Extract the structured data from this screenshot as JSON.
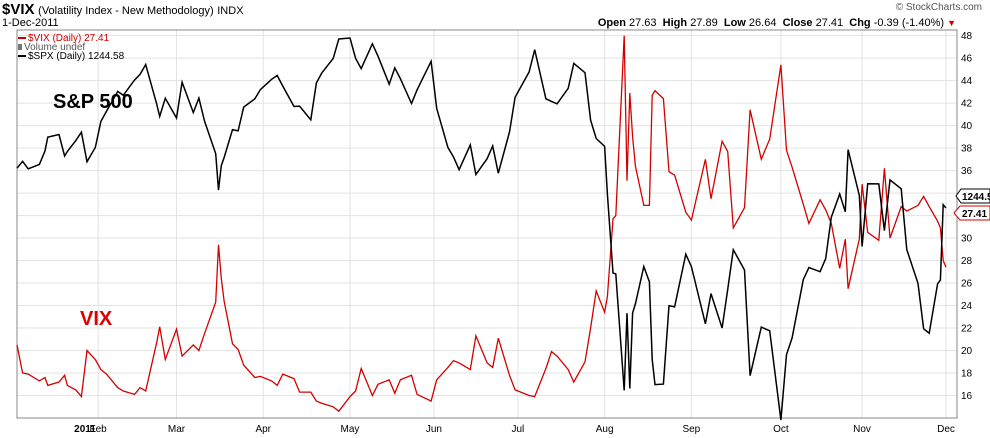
{
  "header": {
    "symbol": "$VIX",
    "name": "(Volatility Index - New Methodology)",
    "exchange": "INDX",
    "date": "1-Dec-2011",
    "open_label": "Open",
    "open": "27.63",
    "high_label": "High",
    "high": "27.89",
    "low_label": "Low",
    "low": "26.64",
    "close_label": "Close",
    "close": "27.41",
    "chg_label": "Chg",
    "chg": "-0.39 (-1.40%)",
    "credit": "© StockCharts.com"
  },
  "legend": {
    "vix": "$VIX (Daily) 27.41",
    "volume": "Volume undef",
    "spx": "$SPX (Daily) 1244.58"
  },
  "annotations": {
    "spx": "S&P 500",
    "vix": "VIX"
  },
  "badges": {
    "spx": "1244.58",
    "vix": "27.41"
  },
  "colors": {
    "vix": "#d40000",
    "spx": "#000000",
    "grid": "#e3e3e3"
  },
  "chart_data": {
    "type": "line",
    "x_range": [
      "2011-01-03",
      "2011-12-01"
    ],
    "x_tick_labels": [
      "2011",
      "Feb",
      "Mar",
      "Apr",
      "May",
      "Jun",
      "Jul",
      "Aug",
      "Sep",
      "Oct",
      "Nov",
      "Dec"
    ],
    "y_ticks": [
      16,
      18,
      20,
      22,
      24,
      26,
      28,
      30,
      32,
      34,
      36,
      38,
      40,
      42,
      44,
      46,
      48
    ],
    "ylim": [
      14,
      48.5
    ],
    "grid": true,
    "series": [
      {
        "name": "$VIX (Daily)",
        "color": "#d40000",
        "last": 27.41,
        "points": [
          [
            "2011-01-03",
            20.5
          ],
          [
            "2011-01-05",
            18.0
          ],
          [
            "2011-01-07",
            17.9
          ],
          [
            "2011-01-11",
            17.3
          ],
          [
            "2011-01-13",
            17.6
          ],
          [
            "2011-01-14",
            16.9
          ],
          [
            "2011-01-18",
            17.2
          ],
          [
            "2011-01-20",
            17.8
          ],
          [
            "2011-01-21",
            16.9
          ],
          [
            "2011-01-24",
            16.5
          ],
          [
            "2011-01-26",
            15.9
          ],
          [
            "2011-01-28",
            20.0
          ],
          [
            "2011-01-31",
            19.2
          ],
          [
            "2011-02-02",
            18.3
          ],
          [
            "2011-02-04",
            17.9
          ],
          [
            "2011-02-08",
            16.7
          ],
          [
            "2011-02-10",
            16.4
          ],
          [
            "2011-02-14",
            16.1
          ],
          [
            "2011-02-16",
            16.7
          ],
          [
            "2011-02-18",
            16.4
          ],
          [
            "2011-02-22",
            20.8
          ],
          [
            "2011-02-23",
            22.1
          ],
          [
            "2011-02-25",
            19.2
          ],
          [
            "2011-03-01",
            21.9
          ],
          [
            "2011-03-03",
            19.5
          ],
          [
            "2011-03-07",
            20.5
          ],
          [
            "2011-03-09",
            20.0
          ],
          [
            "2011-03-11",
            21.5
          ],
          [
            "2011-03-15",
            24.3
          ],
          [
            "2011-03-16",
            29.4
          ],
          [
            "2011-03-17",
            26.4
          ],
          [
            "2011-03-18",
            24.4
          ],
          [
            "2011-03-21",
            20.6
          ],
          [
            "2011-03-23",
            20.1
          ],
          [
            "2011-03-25",
            18.7
          ],
          [
            "2011-03-29",
            17.6
          ],
          [
            "2011-03-31",
            17.7
          ],
          [
            "2011-04-04",
            17.3
          ],
          [
            "2011-04-06",
            16.9
          ],
          [
            "2011-04-08",
            17.9
          ],
          [
            "2011-04-12",
            17.5
          ],
          [
            "2011-04-14",
            16.3
          ],
          [
            "2011-04-18",
            16.3
          ],
          [
            "2011-04-20",
            15.5
          ],
          [
            "2011-04-22",
            15.3
          ],
          [
            "2011-04-26",
            15.0
          ],
          [
            "2011-04-28",
            14.6
          ],
          [
            "2011-05-02",
            15.9
          ],
          [
            "2011-05-04",
            16.4
          ],
          [
            "2011-05-06",
            18.4
          ],
          [
            "2011-05-10",
            16.0
          ],
          [
            "2011-05-12",
            17.0
          ],
          [
            "2011-05-16",
            17.4
          ],
          [
            "2011-05-18",
            16.2
          ],
          [
            "2011-05-20",
            17.4
          ],
          [
            "2011-05-24",
            17.8
          ],
          [
            "2011-05-26",
            16.1
          ],
          [
            "2011-05-31",
            15.5
          ],
          [
            "2011-06-02",
            17.4
          ],
          [
            "2011-06-06",
            18.5
          ],
          [
            "2011-06-08",
            19.1
          ],
          [
            "2011-06-10",
            18.9
          ],
          [
            "2011-06-14",
            18.3
          ],
          [
            "2011-06-16",
            21.3
          ],
          [
            "2011-06-20",
            18.9
          ],
          [
            "2011-06-22",
            18.5
          ],
          [
            "2011-06-24",
            21.1
          ],
          [
            "2011-06-28",
            17.8
          ],
          [
            "2011-06-30",
            16.5
          ],
          [
            "2011-07-05",
            16.0
          ],
          [
            "2011-07-07",
            15.9
          ],
          [
            "2011-07-11",
            18.4
          ],
          [
            "2011-07-13",
            19.9
          ],
          [
            "2011-07-15",
            19.5
          ],
          [
            "2011-07-19",
            18.3
          ],
          [
            "2011-07-21",
            17.2
          ],
          [
            "2011-07-25",
            19.0
          ],
          [
            "2011-07-27",
            22.0
          ],
          [
            "2011-07-29",
            25.3
          ],
          [
            "2011-08-01",
            23.4
          ],
          [
            "2011-08-02",
            24.8
          ],
          [
            "2011-08-04",
            31.7
          ],
          [
            "2011-08-05",
            32.0
          ],
          [
            "2011-08-08",
            48.0
          ],
          [
            "2011-08-09",
            35.1
          ],
          [
            "2011-08-10",
            42.9
          ],
          [
            "2011-08-11",
            39.0
          ],
          [
            "2011-08-12",
            36.4
          ],
          [
            "2011-08-15",
            32.9
          ],
          [
            "2011-08-17",
            32.9
          ],
          [
            "2011-08-18",
            42.7
          ],
          [
            "2011-08-19",
            43.1
          ],
          [
            "2011-08-22",
            42.4
          ],
          [
            "2011-08-24",
            35.9
          ],
          [
            "2011-08-26",
            35.6
          ],
          [
            "2011-08-30",
            32.3
          ],
          [
            "2011-09-01",
            31.6
          ],
          [
            "2011-09-06",
            37.0
          ],
          [
            "2011-09-08",
            33.5
          ],
          [
            "2011-09-12",
            38.6
          ],
          [
            "2011-09-14",
            37.7
          ],
          [
            "2011-09-16",
            30.9
          ],
          [
            "2011-09-20",
            32.7
          ],
          [
            "2011-09-22",
            41.4
          ],
          [
            "2011-09-26",
            37.0
          ],
          [
            "2011-09-29",
            38.8
          ],
          [
            "2011-10-03",
            45.4
          ],
          [
            "2011-10-05",
            37.8
          ],
          [
            "2011-10-07",
            36.3
          ],
          [
            "2011-10-11",
            33.0
          ],
          [
            "2011-10-13",
            31.3
          ],
          [
            "2011-10-17",
            33.4
          ],
          [
            "2011-10-19",
            32.5
          ],
          [
            "2011-10-21",
            31.3
          ],
          [
            "2011-10-24",
            27.3
          ],
          [
            "2011-10-26",
            29.9
          ],
          [
            "2011-10-27",
            25.5
          ],
          [
            "2011-10-31",
            29.9
          ],
          [
            "2011-11-01",
            34.8
          ],
          [
            "2011-11-03",
            30.5
          ],
          [
            "2011-11-07",
            29.8
          ],
          [
            "2011-11-09",
            36.2
          ],
          [
            "2011-11-11",
            30.0
          ],
          [
            "2011-11-15",
            32.8
          ],
          [
            "2011-11-17",
            32.4
          ],
          [
            "2011-11-21",
            32.9
          ],
          [
            "2011-11-23",
            33.7
          ],
          [
            "2011-11-25",
            32.8
          ],
          [
            "2011-11-28",
            31.5
          ],
          [
            "2011-11-29",
            30.9
          ],
          [
            "2011-11-30",
            28.0
          ],
          [
            "2011-12-01",
            27.4
          ]
        ]
      },
      {
        "name": "$SPX (Daily)",
        "color": "#000000",
        "last": 1244.58,
        "points": [
          [
            "2011-01-03",
            1271.9
          ],
          [
            "2011-01-05",
            1276.6
          ],
          [
            "2011-01-07",
            1271.5
          ],
          [
            "2011-01-11",
            1274.5
          ],
          [
            "2011-01-13",
            1283.8
          ],
          [
            "2011-01-14",
            1293.2
          ],
          [
            "2011-01-18",
            1295.0
          ],
          [
            "2011-01-20",
            1280.3
          ],
          [
            "2011-01-21",
            1283.4
          ],
          [
            "2011-01-24",
            1290.8
          ],
          [
            "2011-01-26",
            1296.6
          ],
          [
            "2011-01-28",
            1276.3
          ],
          [
            "2011-01-31",
            1286.1
          ],
          [
            "2011-02-02",
            1304.0
          ],
          [
            "2011-02-04",
            1310.9
          ],
          [
            "2011-02-08",
            1324.6
          ],
          [
            "2011-02-10",
            1321.9
          ],
          [
            "2011-02-14",
            1332.3
          ],
          [
            "2011-02-16",
            1336.3
          ],
          [
            "2011-02-18",
            1343.0
          ],
          [
            "2011-02-22",
            1315.4
          ],
          [
            "2011-02-23",
            1307.4
          ],
          [
            "2011-02-25",
            1319.9
          ],
          [
            "2011-03-01",
            1306.3
          ],
          [
            "2011-03-03",
            1330.9
          ],
          [
            "2011-03-07",
            1310.1
          ],
          [
            "2011-03-09",
            1320.0
          ],
          [
            "2011-03-11",
            1304.3
          ],
          [
            "2011-03-15",
            1281.9
          ],
          [
            "2011-03-16",
            1256.9
          ],
          [
            "2011-03-17",
            1273.7
          ],
          [
            "2011-03-18",
            1279.2
          ],
          [
            "2011-03-21",
            1298.4
          ],
          [
            "2011-03-23",
            1297.5
          ],
          [
            "2011-03-25",
            1313.8
          ],
          [
            "2011-03-29",
            1319.4
          ],
          [
            "2011-03-31",
            1325.8
          ],
          [
            "2011-04-04",
            1332.9
          ],
          [
            "2011-04-06",
            1335.5
          ],
          [
            "2011-04-08",
            1328.2
          ],
          [
            "2011-04-12",
            1314.2
          ],
          [
            "2011-04-14",
            1314.5
          ],
          [
            "2011-04-18",
            1305.1
          ],
          [
            "2011-04-20",
            1330.4
          ],
          [
            "2011-04-22",
            1337.4
          ],
          [
            "2011-04-26",
            1347.2
          ],
          [
            "2011-04-28",
            1360.5
          ],
          [
            "2011-05-02",
            1361.2
          ],
          [
            "2011-05-04",
            1347.3
          ],
          [
            "2011-05-06",
            1340.2
          ],
          [
            "2011-05-10",
            1357.2
          ],
          [
            "2011-05-12",
            1348.7
          ],
          [
            "2011-05-16",
            1329.5
          ],
          [
            "2011-05-18",
            1340.7
          ],
          [
            "2011-05-20",
            1333.3
          ],
          [
            "2011-05-24",
            1316.3
          ],
          [
            "2011-05-26",
            1325.7
          ],
          [
            "2011-05-31",
            1345.2
          ],
          [
            "2011-06-02",
            1312.9
          ],
          [
            "2011-06-06",
            1286.2
          ],
          [
            "2011-06-08",
            1279.6
          ],
          [
            "2011-06-10",
            1270.9
          ],
          [
            "2011-06-14",
            1287.9
          ],
          [
            "2011-06-16",
            1267.6
          ],
          [
            "2011-06-20",
            1278.4
          ],
          [
            "2011-06-22",
            1287.1
          ],
          [
            "2011-06-24",
            1268.5
          ],
          [
            "2011-06-28",
            1296.7
          ],
          [
            "2011-06-30",
            1320.6
          ],
          [
            "2011-07-05",
            1337.9
          ],
          [
            "2011-07-07",
            1353.2
          ],
          [
            "2011-07-11",
            1319.5
          ],
          [
            "2011-07-13",
            1317.7
          ],
          [
            "2011-07-15",
            1316.1
          ],
          [
            "2011-07-19",
            1326.7
          ],
          [
            "2011-07-21",
            1343.8
          ],
          [
            "2011-07-25",
            1337.4
          ],
          [
            "2011-07-27",
            1304.9
          ],
          [
            "2011-07-29",
            1292.3
          ],
          [
            "2011-08-01",
            1286.9
          ],
          [
            "2011-08-02",
            1254.1
          ],
          [
            "2011-08-04",
            1200.1
          ],
          [
            "2011-08-05",
            1199.4
          ],
          [
            "2011-08-08",
            1119.5
          ],
          [
            "2011-08-09",
            1172.5
          ],
          [
            "2011-08-10",
            1120.8
          ],
          [
            "2011-08-11",
            1172.6
          ],
          [
            "2011-08-12",
            1178.8
          ],
          [
            "2011-08-15",
            1204.5
          ],
          [
            "2011-08-17",
            1193.9
          ],
          [
            "2011-08-18",
            1140.7
          ],
          [
            "2011-08-19",
            1123.5
          ],
          [
            "2011-08-22",
            1123.8
          ],
          [
            "2011-08-24",
            1177.6
          ],
          [
            "2011-08-26",
            1176.8
          ],
          [
            "2011-08-30",
            1212.9
          ],
          [
            "2011-09-01",
            1204.4
          ],
          [
            "2011-09-06",
            1165.2
          ],
          [
            "2011-09-08",
            1185.9
          ],
          [
            "2011-09-12",
            1162.3
          ],
          [
            "2011-09-14",
            1188.7
          ],
          [
            "2011-09-16",
            1216.0
          ],
          [
            "2011-09-20",
            1202.1
          ],
          [
            "2011-09-22",
            1129.6
          ],
          [
            "2011-09-26",
            1162.9
          ],
          [
            "2011-09-29",
            1160.4
          ],
          [
            "2011-10-03",
            1099.2
          ],
          [
            "2011-10-05",
            1144.0
          ],
          [
            "2011-10-07",
            1155.5
          ],
          [
            "2011-10-11",
            1195.5
          ],
          [
            "2011-10-13",
            1203.7
          ],
          [
            "2011-10-17",
            1200.9
          ],
          [
            "2011-10-19",
            1209.9
          ],
          [
            "2011-10-21",
            1238.3
          ],
          [
            "2011-10-24",
            1254.2
          ],
          [
            "2011-10-26",
            1242.0
          ],
          [
            "2011-10-27",
            1284.6
          ],
          [
            "2011-10-31",
            1253.3
          ],
          [
            "2011-11-01",
            1218.3
          ],
          [
            "2011-11-03",
            1261.2
          ],
          [
            "2011-11-07",
            1261.1
          ],
          [
            "2011-11-09",
            1229.1
          ],
          [
            "2011-11-11",
            1263.9
          ],
          [
            "2011-11-15",
            1257.8
          ],
          [
            "2011-11-17",
            1216.1
          ],
          [
            "2011-11-21",
            1192.9
          ],
          [
            "2011-11-23",
            1161.8
          ],
          [
            "2011-11-25",
            1158.7
          ],
          [
            "2011-11-28",
            1192.6
          ],
          [
            "2011-11-29",
            1195.2
          ],
          [
            "2011-11-30",
            1246.9
          ],
          [
            "2011-12-01",
            1244.6
          ]
        ]
      }
    ]
  }
}
